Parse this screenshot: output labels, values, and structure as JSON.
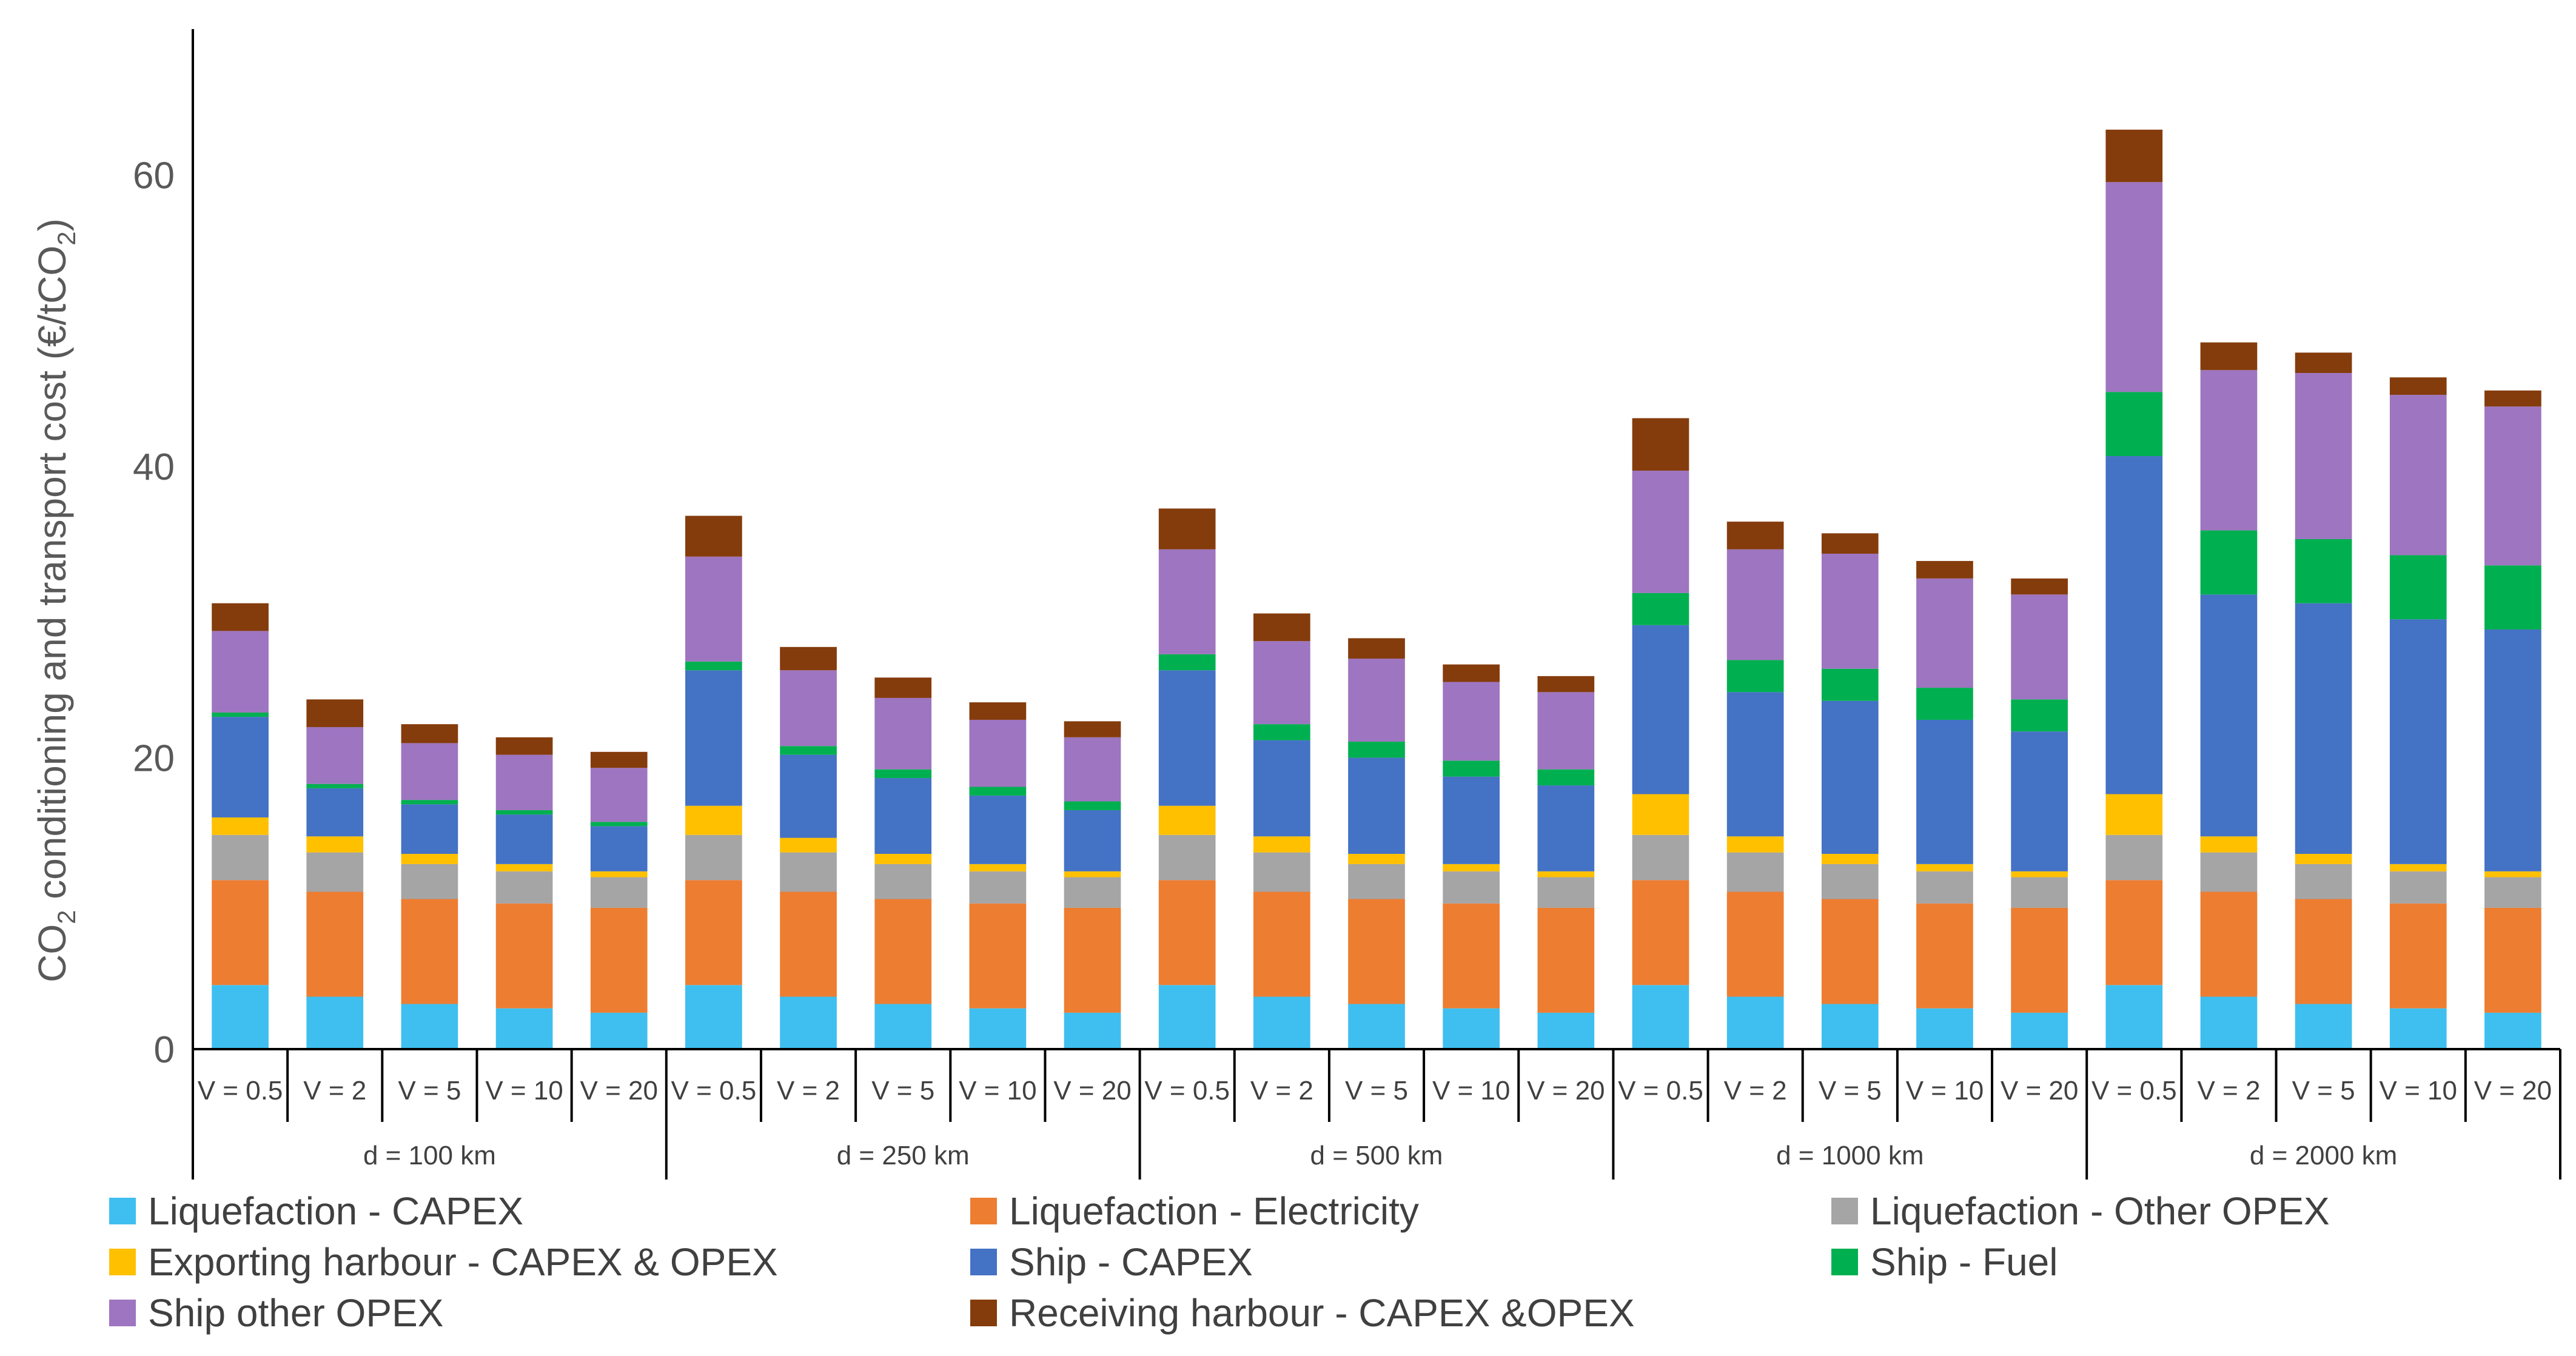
{
  "chart_data": {
    "type": "bar",
    "stacked": true,
    "ylabel": {
      "main": "CO",
      "sub1": "2",
      "mid": " conditioning and transport cost (€/tCO",
      "sub2": "2",
      "end": ")"
    },
    "ylim": [
      0,
      70
    ],
    "yticks": [
      0,
      20,
      40,
      60
    ],
    "grid": false,
    "legend_position": "bottom",
    "groups": [
      "d = 100 km",
      "d = 250 km",
      "d = 500 km",
      "d = 1000 km",
      "d = 2000 km"
    ],
    "subcategories": [
      "V = 0.5",
      "V = 2",
      "V = 5",
      "V = 10",
      "V = 20"
    ],
    "series": [
      {
        "name": "Liquefaction - CAPEX",
        "color": "#3fbfef",
        "values": [
          4.4,
          3.6,
          3.1,
          2.8,
          2.5,
          4.4,
          3.6,
          3.1,
          2.8,
          2.5,
          4.4,
          3.6,
          3.1,
          2.8,
          2.5,
          4.4,
          3.6,
          3.1,
          2.8,
          2.5,
          4.4,
          3.6,
          3.1,
          2.8,
          2.5
        ]
      },
      {
        "name": "Liquefaction - Electricity",
        "color": "#ed7d31",
        "values": [
          7.2,
          7.2,
          7.2,
          7.2,
          7.2,
          7.2,
          7.2,
          7.2,
          7.2,
          7.2,
          7.2,
          7.2,
          7.2,
          7.2,
          7.2,
          7.2,
          7.2,
          7.2,
          7.2,
          7.2,
          7.2,
          7.2,
          7.2,
          7.2,
          7.2
        ]
      },
      {
        "name": "Liquefaction - Other OPEX",
        "color": "#a5a5a5",
        "values": [
          3.1,
          2.7,
          2.4,
          2.2,
          2.1,
          3.1,
          2.7,
          2.4,
          2.2,
          2.1,
          3.1,
          2.7,
          2.4,
          2.2,
          2.1,
          3.1,
          2.7,
          2.4,
          2.2,
          2.1,
          3.1,
          2.7,
          2.4,
          2.2,
          2.1
        ]
      },
      {
        "name": "Exporting harbour - CAPEX & OPEX",
        "color": "#ffc000",
        "values": [
          1.2,
          1.1,
          0.7,
          0.5,
          0.4,
          2.0,
          1.0,
          0.7,
          0.5,
          0.4,
          2.0,
          1.1,
          0.7,
          0.5,
          0.4,
          2.8,
          1.1,
          0.7,
          0.5,
          0.4,
          2.8,
          1.1,
          0.7,
          0.5,
          0.4
        ]
      },
      {
        "name": "Ship - CAPEX",
        "color": "#4472c4",
        "values": [
          6.9,
          3.3,
          3.4,
          3.4,
          3.1,
          9.3,
          5.7,
          5.2,
          4.7,
          4.2,
          9.3,
          6.6,
          6.6,
          6.0,
          5.9,
          11.6,
          9.9,
          10.5,
          9.9,
          9.6,
          23.2,
          16.6,
          17.2,
          16.8,
          16.6
        ]
      },
      {
        "name": "Ship - Fuel",
        "color": "#00b050",
        "values": [
          0.3,
          0.3,
          0.3,
          0.3,
          0.3,
          0.6,
          0.6,
          0.6,
          0.6,
          0.6,
          1.1,
          1.1,
          1.1,
          1.1,
          1.1,
          2.2,
          2.2,
          2.2,
          2.2,
          2.2,
          4.4,
          4.4,
          4.4,
          4.4,
          4.4
        ]
      },
      {
        "name": "Ship other OPEX",
        "color": "#9e75c0",
        "values": [
          5.6,
          3.9,
          3.9,
          3.8,
          3.7,
          7.2,
          5.2,
          4.9,
          4.6,
          4.4,
          7.2,
          5.7,
          5.7,
          5.4,
          5.3,
          8.4,
          7.6,
          7.9,
          7.5,
          7.2,
          14.4,
          11.0,
          11.4,
          11.0,
          10.9
        ]
      },
      {
        "name": "Receiving harbour - CAPEX &OPEX",
        "color": "#843c0c",
        "values": [
          1.9,
          1.9,
          1.3,
          1.2,
          1.1,
          2.8,
          1.6,
          1.4,
          1.2,
          1.1,
          2.8,
          1.9,
          1.4,
          1.2,
          1.1,
          3.6,
          1.9,
          1.4,
          1.2,
          1.1,
          3.6,
          1.9,
          1.4,
          1.2,
          1.1
        ]
      }
    ]
  }
}
